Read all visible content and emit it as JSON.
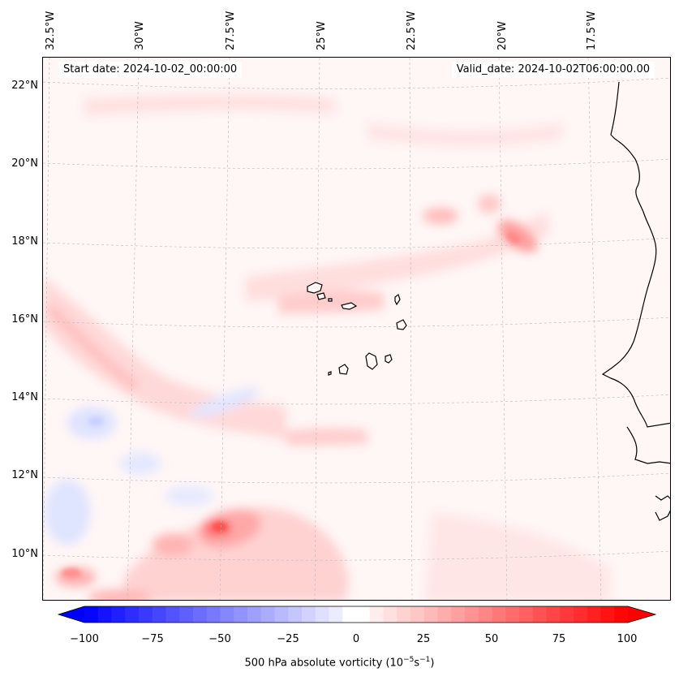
{
  "header": {
    "start_date": "Start date: 2024-10-02_00:00:00",
    "valid_date": "Valid_date: 2024-10-02T06:00:00.00"
  },
  "map": {
    "lon_labels": [
      "32.5°W",
      "30°W",
      "27.5°W",
      "25°W",
      "22.5°W",
      "20°W",
      "17.5°W"
    ],
    "lat_labels": [
      "22°N",
      "20°N",
      "18°N",
      "16°N",
      "14°N",
      "12°N",
      "10°N"
    ],
    "gridlines": true,
    "projection": "lambert-conformal",
    "field": "500 hPa absolute vorticity",
    "features": [
      "Cape Verde islands",
      "West African coastline"
    ]
  },
  "colorbar": {
    "ticks": [
      "−100",
      "−75",
      "−50",
      "−25",
      "0",
      "25",
      "50",
      "75",
      "100"
    ],
    "label": "500 hPa absolute vorticity (10",
    "label_exp1": "−5",
    "label_mid": "s",
    "label_exp2": "−1",
    "label_end": ")",
    "min": -100,
    "max": 100,
    "extend": "both",
    "colors": {
      "negative": "#0000ff",
      "zero": "#ffffff",
      "positive": "#ff0000"
    }
  }
}
